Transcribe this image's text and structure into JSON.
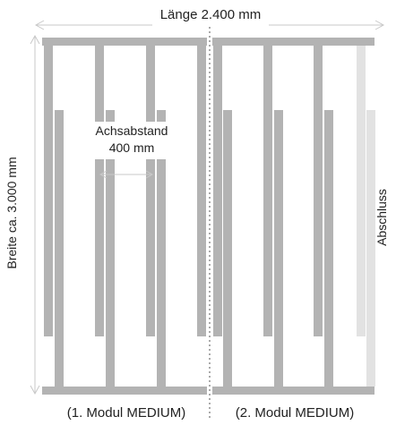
{
  "labels": {
    "length": "Länge 2.400 mm",
    "width": "Breite ca. 3.000 mm",
    "spacing_title": "Achsabstand",
    "spacing_value": "400 mm",
    "end_piece": "Abschluss",
    "module_1": "(1. Modul MEDIUM)",
    "module_2": "(2. Modul MEDIUM)"
  },
  "colors": {
    "bar": "#b3b3b3",
    "bar_end": "#e2e2e2",
    "dimension_arrow": "#c8c8c8",
    "divider": "#555555",
    "text": "#222222"
  }
}
